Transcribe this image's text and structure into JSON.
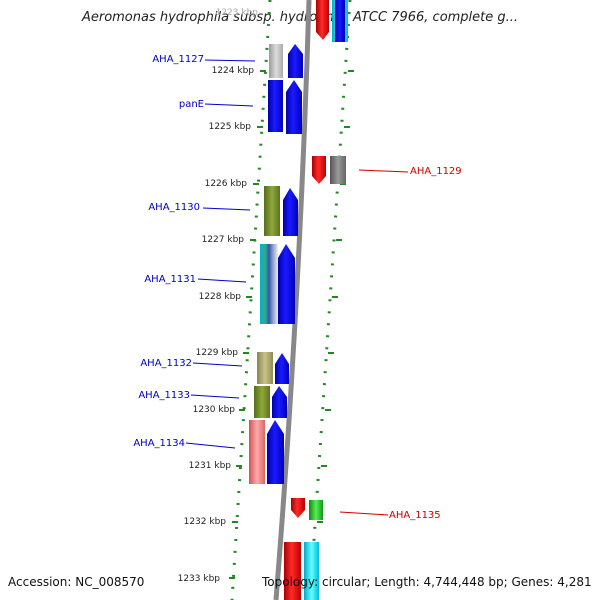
{
  "title": "Aeromonas hydrophila subsp. hydrophila ATCC 7966, complete g...",
  "footer": {
    "accession": "Accession: NC_008570",
    "summary": "Topology: circular; Length: 4,744,448 bp; Genes: 4,281"
  },
  "kbp_labels": [
    {
      "id": "k1223",
      "text": "1223 kbp"
    },
    {
      "id": "k1224",
      "text": "1224 kbp"
    },
    {
      "id": "k1225",
      "text": "1225 kbp"
    },
    {
      "id": "k1226",
      "text": "1226 kbp"
    },
    {
      "id": "k1227",
      "text": "1227 kbp"
    },
    {
      "id": "k1228",
      "text": "1228 kbp"
    },
    {
      "id": "k1229",
      "text": "1229 kbp"
    },
    {
      "id": "k1230",
      "text": "1230 kbp"
    },
    {
      "id": "k1231",
      "text": "1231 kbp"
    },
    {
      "id": "k1232",
      "text": "1232 kbp"
    },
    {
      "id": "k1233",
      "text": "1233 kbp"
    }
  ],
  "gene_labels": [
    {
      "id": "aha1127",
      "text": "AHA_1127",
      "color": "#0000cc"
    },
    {
      "id": "panE",
      "text": "panE",
      "color": "#0000cc"
    },
    {
      "id": "aha1129",
      "text": "AHA_1129",
      "color": "#cc0000"
    },
    {
      "id": "aha1130",
      "text": "AHA_1130",
      "color": "#0000cc"
    },
    {
      "id": "aha1131",
      "text": "AHA_1131",
      "color": "#0000cc"
    },
    {
      "id": "aha1132",
      "text": "AHA_1132",
      "color": "#0000cc"
    },
    {
      "id": "aha1133",
      "text": "AHA_1133",
      "color": "#0000cc"
    },
    {
      "id": "aha1134",
      "text": "AHA_1134",
      "color": "#0000cc"
    },
    {
      "id": "aha1135",
      "text": "AHA_1135",
      "color": "#cc0000"
    }
  ],
  "colors": {
    "forward_strand": "#0000ee",
    "reverse_strand": "#ee0000",
    "backbone": "#888888",
    "ruler": "#228822"
  }
}
